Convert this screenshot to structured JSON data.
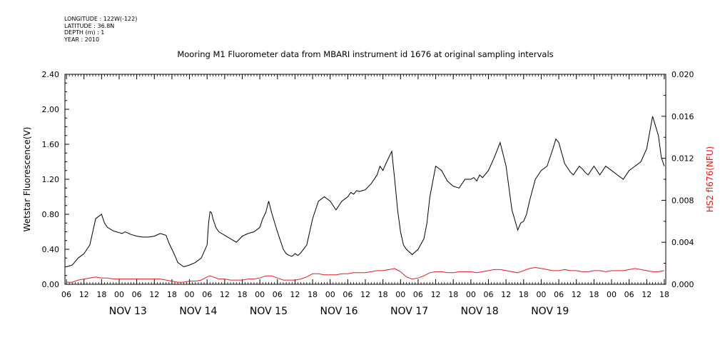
{
  "metadata": [
    "LONGITUDE : 122W(-122)",
    "LATITUDE : 36.8N",
    "DEPTH (m) : 1",
    "YEAR : 2010"
  ],
  "chart_data": {
    "type": "line",
    "title": "Mooring M1 Fluorometer data from MBARI instrument id 1676 at original sampling intervals",
    "ylabel_left": "Wetstar Fluorescence(V)",
    "ylabel_right": "HS2 fl676(NFU)",
    "ylim_left": [
      0,
      2.4
    ],
    "ylim_right": [
      0,
      0.02
    ],
    "yticks_left": [
      "0.00",
      "0.40",
      "0.80",
      "1.20",
      "1.60",
      "2.00",
      "2.40"
    ],
    "yticks_right": [
      "0.000",
      "0.004",
      "0.008",
      "0.012",
      "0.016",
      "0.020"
    ],
    "x_unit": "hours from NOV 13 00:00",
    "xlim": [
      -18.5,
      186.5
    ],
    "hour_ticks": [
      "00",
      "06",
      "12",
      "18"
    ],
    "day_labels": [
      "NOV 13",
      "NOV 14",
      "NOV 15",
      "NOV 16",
      "NOV 17",
      "NOV 18",
      "NOV 19"
    ],
    "grid": false,
    "colors": {
      "left_series": "#000000",
      "right_series": "#e0201c",
      "right_axis_label": "#e0201c"
    },
    "series": [
      {
        "axis": "left",
        "x": [
          -18,
          -16,
          -14,
          -12,
          -10,
          -8,
          -6,
          -5,
          -4,
          -3,
          -2,
          -1,
          0,
          1,
          2,
          4,
          6,
          8,
          10,
          12,
          14,
          16,
          17,
          18,
          19,
          20,
          22,
          24,
          26,
          28,
          30,
          30.5,
          31,
          31.5,
          32,
          33,
          34,
          36,
          38,
          40,
          42,
          44,
          46,
          48,
          49,
          50,
          51,
          52,
          54,
          56,
          57,
          58,
          59,
          60,
          61,
          62,
          64,
          66,
          68,
          70,
          72,
          74,
          76,
          78,
          79,
          80,
          81,
          82,
          84,
          86,
          88,
          89,
          90,
          91,
          92,
          93,
          94,
          95,
          96,
          97,
          98,
          100,
          102,
          104,
          105,
          106,
          108,
          110,
          112,
          114,
          116,
          118,
          120,
          121,
          122,
          123,
          124,
          126,
          128,
          130,
          132,
          134,
          136,
          137,
          138,
          139,
          140,
          142,
          144,
          146,
          148,
          149,
          150,
          151,
          152,
          154,
          155,
          156,
          157,
          158,
          159,
          160,
          161,
          162,
          163,
          164,
          166,
          168,
          170,
          172,
          174,
          176,
          178,
          180,
          182,
          184,
          185,
          186
        ],
        "values": [
          0.2,
          0.22,
          0.3,
          0.35,
          0.45,
          0.75,
          0.8,
          0.7,
          0.65,
          0.63,
          0.61,
          0.6,
          0.59,
          0.58,
          0.6,
          0.57,
          0.55,
          0.54,
          0.54,
          0.55,
          0.58,
          0.56,
          0.47,
          0.4,
          0.33,
          0.25,
          0.2,
          0.22,
          0.25,
          0.3,
          0.45,
          0.7,
          0.83,
          0.82,
          0.75,
          0.65,
          0.6,
          0.56,
          0.52,
          0.48,
          0.55,
          0.58,
          0.6,
          0.65,
          0.75,
          0.82,
          0.95,
          0.82,
          0.6,
          0.4,
          0.35,
          0.33,
          0.32,
          0.35,
          0.33,
          0.36,
          0.45,
          0.75,
          0.95,
          1.0,
          0.95,
          0.85,
          0.95,
          1.0,
          1.05,
          1.03,
          1.07,
          1.06,
          1.08,
          1.15,
          1.25,
          1.35,
          1.3,
          1.38,
          1.45,
          1.52,
          1.2,
          0.85,
          0.6,
          0.45,
          0.4,
          0.34,
          0.4,
          0.52,
          0.7,
          1.0,
          1.35,
          1.3,
          1.18,
          1.12,
          1.1,
          1.2,
          1.2,
          1.22,
          1.18,
          1.25,
          1.22,
          1.3,
          1.45,
          1.62,
          1.35,
          0.85,
          0.62,
          0.7,
          0.72,
          0.8,
          0.95,
          1.2,
          1.3,
          1.35,
          1.55,
          1.66,
          1.62,
          1.5,
          1.38,
          1.28,
          1.25,
          1.3,
          1.35,
          1.32,
          1.28,
          1.25,
          1.3,
          1.35,
          1.3,
          1.25,
          1.35,
          1.3,
          1.25,
          1.2,
          1.3,
          1.35,
          1.4,
          1.55,
          1.92,
          1.7,
          1.45,
          1.35
        ]
      },
      {
        "axis": "right",
        "x": [
          -18,
          -16,
          -14,
          -12,
          -10,
          -8,
          -6,
          -4,
          -2,
          0,
          2,
          4,
          6,
          8,
          10,
          12,
          14,
          16,
          18,
          20,
          22,
          24,
          26,
          28,
          30,
          31,
          32,
          34,
          36,
          38,
          40,
          42,
          44,
          46,
          48,
          50,
          52,
          54,
          56,
          58,
          60,
          62,
          64,
          66,
          68,
          70,
          72,
          74,
          76,
          78,
          80,
          82,
          84,
          86,
          88,
          90,
          92,
          94,
          96,
          98,
          100,
          102,
          104,
          106,
          108,
          110,
          112,
          114,
          116,
          118,
          120,
          122,
          124,
          126,
          128,
          130,
          132,
          134,
          136,
          138,
          140,
          142,
          144,
          146,
          148,
          150,
          152,
          154,
          156,
          158,
          160,
          162,
          164,
          166,
          168,
          170,
          172,
          174,
          176,
          178,
          180,
          182,
          184,
          186
        ],
        "values": [
          0.0002,
          0.0002,
          0.0004,
          0.0005,
          0.0006,
          0.0007,
          0.0006,
          0.0006,
          0.0005,
          0.0005,
          0.0005,
          0.0005,
          0.0005,
          0.0005,
          0.0005,
          0.0005,
          0.0005,
          0.0004,
          0.0003,
          0.0002,
          0.0002,
          0.0003,
          0.0003,
          0.0004,
          0.0007,
          0.0008,
          0.0007,
          0.0005,
          0.0005,
          0.0004,
          0.0004,
          0.0004,
          0.0005,
          0.0005,
          0.0006,
          0.0008,
          0.0008,
          0.0006,
          0.0004,
          0.0004,
          0.0004,
          0.0005,
          0.0007,
          0.001,
          0.001,
          0.0009,
          0.0009,
          0.0009,
          0.001,
          0.001,
          0.0011,
          0.0011,
          0.0011,
          0.0012,
          0.0013,
          0.0013,
          0.0014,
          0.0015,
          0.0012,
          0.0007,
          0.0005,
          0.0006,
          0.0008,
          0.0011,
          0.0012,
          0.0012,
          0.0011,
          0.0011,
          0.0012,
          0.0012,
          0.0012,
          0.0011,
          0.0012,
          0.0013,
          0.0014,
          0.0014,
          0.0013,
          0.0012,
          0.0011,
          0.0013,
          0.0015,
          0.0016,
          0.0015,
          0.0014,
          0.0013,
          0.0013,
          0.0014,
          0.0013,
          0.0013,
          0.0012,
          0.0012,
          0.0013,
          0.0013,
          0.0012,
          0.0013,
          0.0013,
          0.0013,
          0.0014,
          0.0015,
          0.0014,
          0.0013,
          0.0012,
          0.0012,
          0.0013
        ]
      }
    ]
  }
}
